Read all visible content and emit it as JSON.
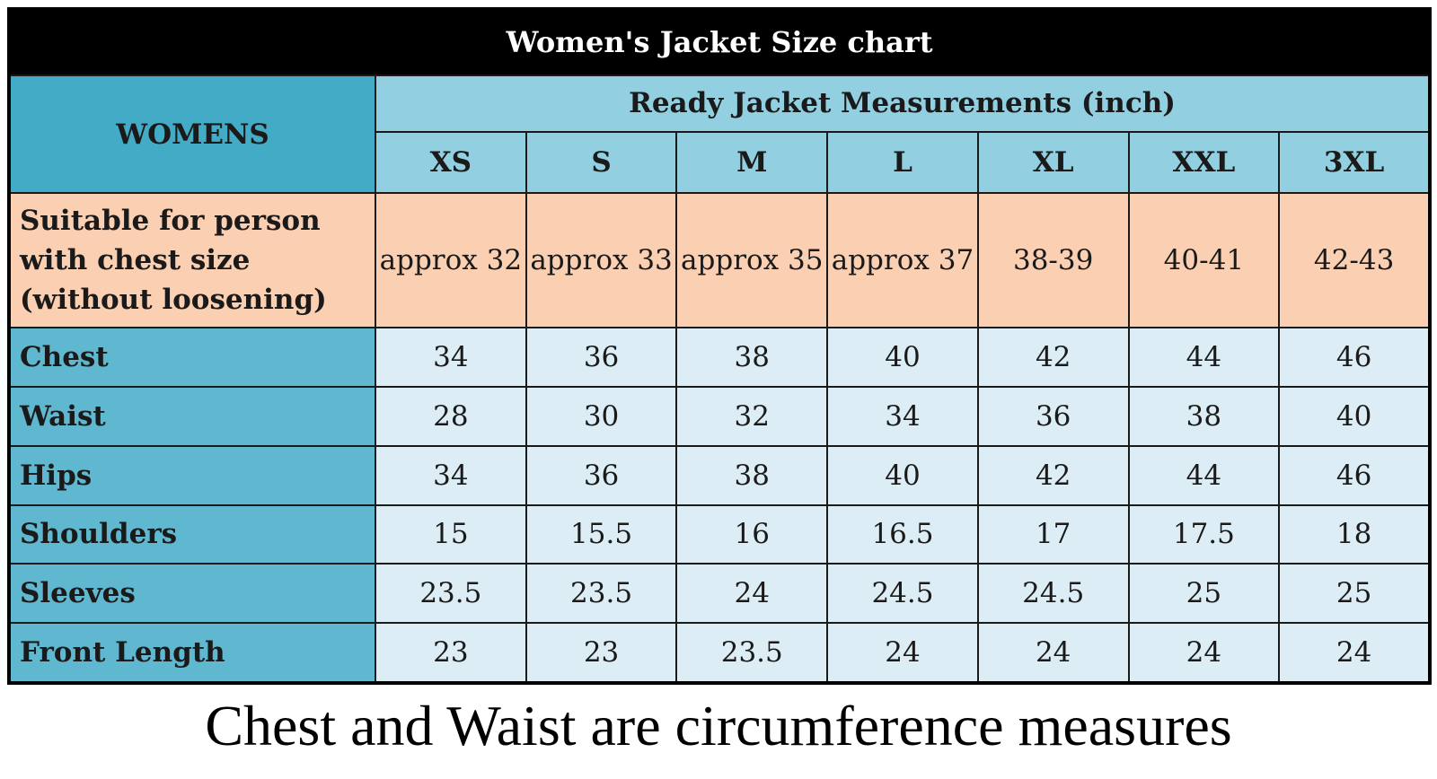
{
  "title": "Women's Jacket Size chart",
  "womens_label": "WOMENS",
  "group_label": "Ready Jacket Measurements (inch)",
  "sizes": [
    "XS",
    "S",
    "M",
    "L",
    "XL",
    "XXL",
    "3XL"
  ],
  "suitable": {
    "label_lines": [
      "Suitable for person",
      "with chest size",
      "(without loosening)"
    ],
    "values": [
      "approx 32",
      "approx 33",
      "approx 35",
      "approx 37",
      "38-39",
      "40-41",
      "42-43"
    ]
  },
  "rows": [
    {
      "label": "Chest",
      "values": [
        "34",
        "36",
        "38",
        "40",
        "42",
        "44",
        "46"
      ]
    },
    {
      "label": "Waist",
      "values": [
        "28",
        "30",
        "32",
        "34",
        "36",
        "38",
        "40"
      ]
    },
    {
      "label": "Hips",
      "values": [
        "34",
        "36",
        "38",
        "40",
        "42",
        "44",
        "46"
      ]
    },
    {
      "label": "Shoulders",
      "values": [
        "15",
        "15.5",
        "16",
        "16.5",
        "17",
        "17.5",
        "18"
      ]
    },
    {
      "label": "Sleeves",
      "values": [
        "23.5",
        "23.5",
        "24",
        "24.5",
        "24.5",
        "25",
        "25"
      ]
    },
    {
      "label": "Front Length",
      "values": [
        "23",
        "23",
        "23.5",
        "24",
        "24",
        "24",
        "24"
      ]
    }
  ],
  "caption": "Chest and Waist are circumference measures",
  "colors": {
    "title_bg": "#000000",
    "womens_bg": "#44abc6",
    "header_bg": "#92d0e1",
    "suitable_bg": "#fbcfb1",
    "row_label_bg": "#5fb8d0",
    "cell_bg": "#dcedf5"
  }
}
